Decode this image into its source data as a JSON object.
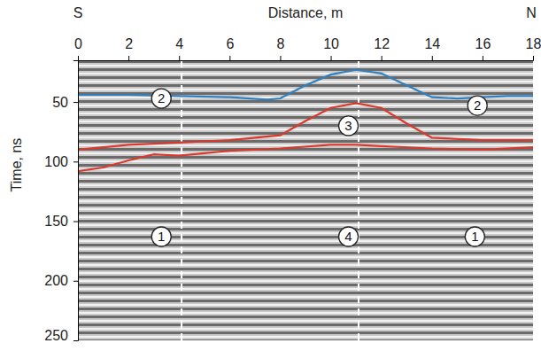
{
  "chart_data": {
    "type": "line",
    "x_label": "Distance, m",
    "y_label": "Time, ns",
    "left_label": "S",
    "right_label": "N",
    "xlim": [
      0,
      18
    ],
    "xticks": [
      0,
      2,
      4,
      6,
      8,
      10,
      12,
      14,
      16,
      18
    ],
    "ylim": [
      15,
      250
    ],
    "yticks": [
      50,
      100,
      150,
      200,
      250
    ],
    "series": [
      {
        "color": "#2f7fc1",
        "x": [
          0,
          2,
          4,
          6,
          7.5,
          8,
          9,
          10,
          11,
          12,
          13,
          14,
          15,
          16,
          17,
          18
        ],
        "values": [
          44,
          44,
          45,
          46,
          48,
          47,
          36,
          27,
          23,
          26,
          36,
          46,
          47,
          46,
          45,
          45
        ]
      },
      {
        "color": "#d9382b",
        "x": [
          0,
          2,
          4,
          6,
          8,
          9,
          10,
          11,
          12,
          13,
          14,
          16,
          18
        ],
        "values": [
          90,
          86,
          84,
          82,
          78,
          66,
          55,
          51,
          55,
          68,
          80,
          82,
          82
        ]
      },
      {
        "color": "#d9382b",
        "x": [
          0,
          1,
          2,
          3,
          4,
          5,
          6,
          8,
          10,
          11,
          12,
          14,
          16,
          18
        ],
        "values": [
          108,
          105,
          99,
          94,
          95,
          93,
          91,
          89,
          86,
          86,
          87,
          89,
          90,
          88
        ]
      }
    ],
    "vertical_lines": [
      4.1,
      11.1
    ],
    "annotations": [
      {
        "text": "1",
        "x": 3.3,
        "y": 163
      },
      {
        "text": "1",
        "x": 15.7,
        "y": 163
      },
      {
        "text": "2",
        "x": 3.3,
        "y": 47
      },
      {
        "text": "2",
        "x": 15.8,
        "y": 53
      },
      {
        "text": "3",
        "x": 10.7,
        "y": 70
      },
      {
        "text": "4",
        "x": 10.7,
        "y": 163
      }
    ]
  }
}
